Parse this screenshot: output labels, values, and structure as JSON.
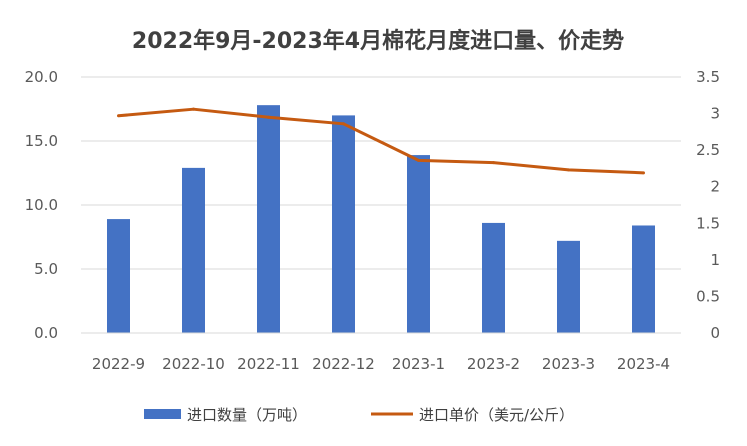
{
  "chart_data": {
    "type": "bar",
    "title": "2022年9月-2023年4月棉花月度进口量、价走势",
    "categories": [
      "2022-9",
      "2022-10",
      "2022-11",
      "2022-12",
      "2023-1",
      "2023-2",
      "2023-3",
      "2023-4"
    ],
    "series": [
      {
        "name": "进口数量（万吨）",
        "type": "bar",
        "axis": "left",
        "color": "#4472c4",
        "values": [
          8.9,
          12.9,
          17.8,
          17.0,
          13.9,
          8.6,
          7.2,
          8.4
        ]
      },
      {
        "name": "进口单价（美元/公斤）",
        "type": "line",
        "axis": "right",
        "color": "#c55a11",
        "values": [
          2.97,
          3.06,
          2.95,
          2.86,
          2.36,
          2.33,
          2.23,
          2.19
        ]
      }
    ],
    "y_left": {
      "lim": [
        0,
        20
      ],
      "ticks": [
        "0.0",
        "5.0",
        "10.0",
        "15.0",
        "20.0"
      ]
    },
    "y_right": {
      "lim": [
        0,
        3.5
      ],
      "ticks": [
        "0",
        "0.5",
        "1",
        "1.5",
        "2",
        "2.5",
        "3",
        "3.5"
      ]
    },
    "grid": true,
    "legend": "bottom"
  }
}
